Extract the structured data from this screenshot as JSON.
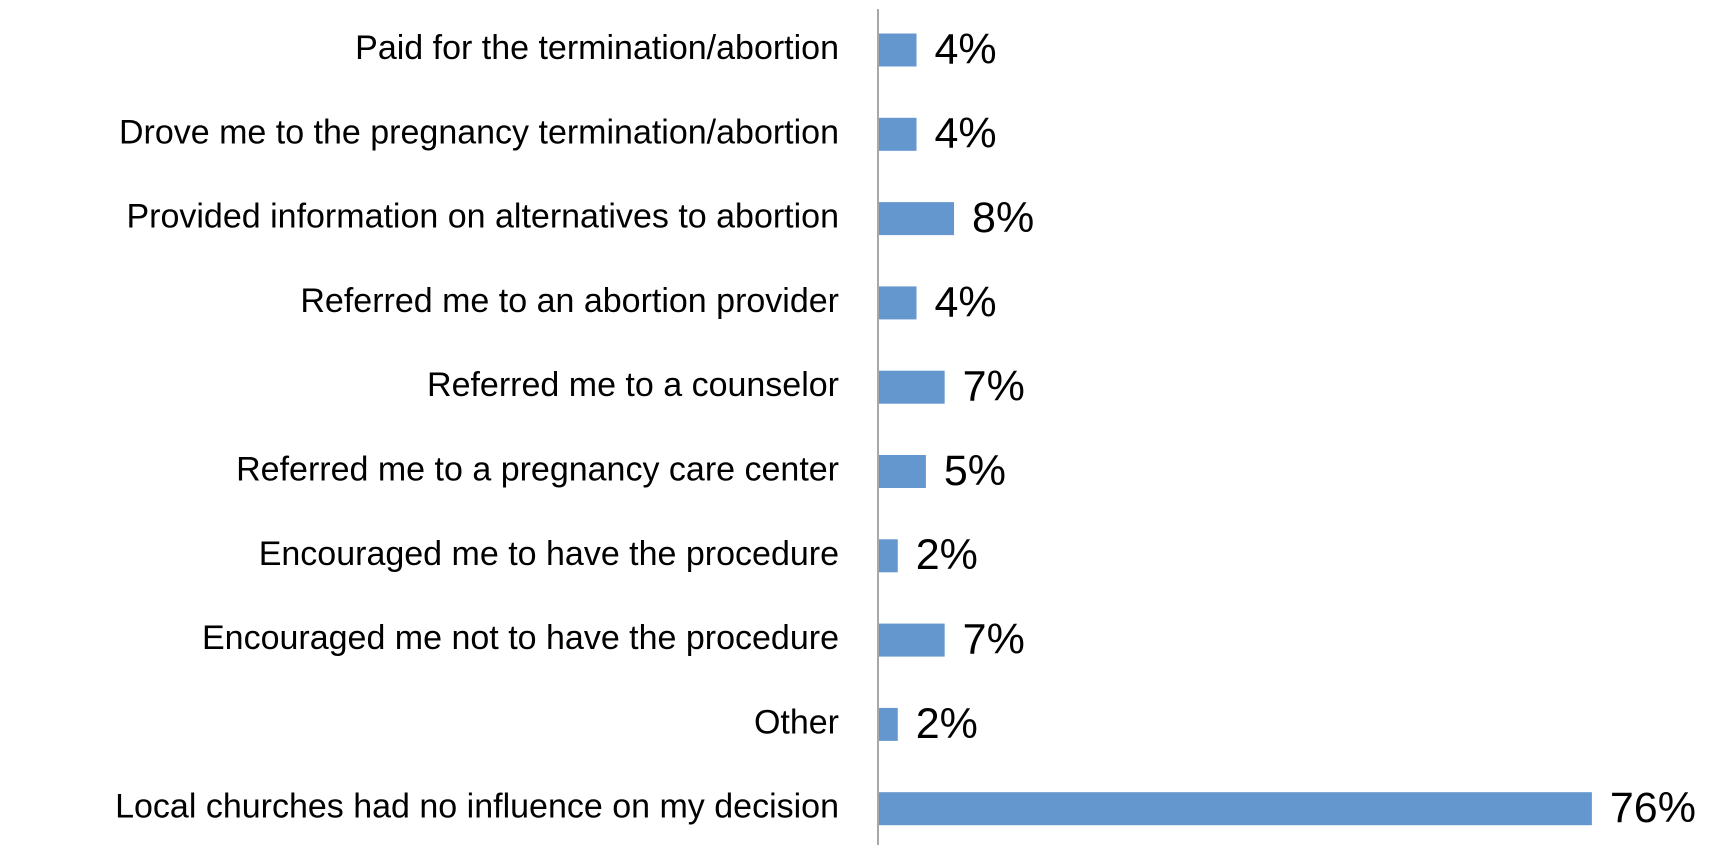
{
  "chart_data": {
    "type": "hbar",
    "categories": [
      "Paid for the termination/abortion",
      "Drove me to the pregnancy termination/abortion",
      "Provided information on alternatives to abortion",
      "Referred me to an abortion provider",
      "Referred me to a counselor",
      "Referred me to a pregnancy care center",
      "Encouraged me to have the procedure",
      "Encouraged me not to have the procedure",
      "Other",
      "Local churches had no influence on my decision"
    ],
    "values": [
      4,
      4,
      8,
      4,
      7,
      5,
      2,
      7,
      2,
      76
    ],
    "value_labels": [
      "4%",
      "4%",
      "8%",
      "4%",
      "7%",
      "5%",
      "2%",
      "7%",
      "2%",
      "76%"
    ],
    "color": "#6497cd"
  }
}
